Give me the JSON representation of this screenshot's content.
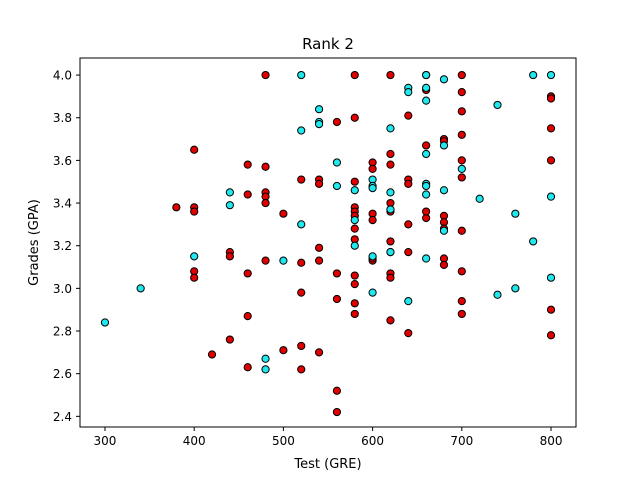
{
  "chart_data": {
    "type": "scatter",
    "title": "Rank 2",
    "xlabel": "Test (GRE)",
    "ylabel": "Grades (GPA)",
    "xlim": [
      272,
      828
    ],
    "ylim": [
      2.35,
      4.08
    ],
    "xticks": [
      300,
      400,
      500,
      600,
      700,
      800
    ],
    "yticks": [
      2.4,
      2.6,
      2.8,
      3.0,
      3.2,
      3.4,
      3.6,
      3.8,
      4.0
    ],
    "xtick_labels": [
      "300",
      "400",
      "500",
      "600",
      "700",
      "800"
    ],
    "ytick_labels": [
      "2.4",
      "2.6",
      "2.8",
      "3.0",
      "3.2",
      "3.4",
      "3.6",
      "3.8",
      "4.0"
    ],
    "grid": false,
    "colors": {
      "red": "#e00000",
      "cyan": "#1fe8ee",
      "edge": "#000000"
    },
    "series": [
      {
        "color": "#e00000",
        "points": [
          [
            480,
            4.0
          ],
          [
            580,
            4.0
          ],
          [
            620,
            4.0
          ],
          [
            660,
            4.0
          ],
          [
            700,
            4.0
          ],
          [
            800,
            3.9
          ],
          [
            800,
            3.89
          ],
          [
            700,
            3.92
          ],
          [
            700,
            3.83
          ],
          [
            800,
            3.75
          ],
          [
            640,
            3.81
          ],
          [
            580,
            3.8
          ],
          [
            560,
            3.78
          ],
          [
            620,
            3.63
          ],
          [
            600,
            3.59
          ],
          [
            680,
            3.7
          ],
          [
            680,
            3.69
          ],
          [
            700,
            3.72
          ],
          [
            660,
            3.67
          ],
          [
            400,
            3.65
          ],
          [
            460,
            3.58
          ],
          [
            480,
            3.57
          ],
          [
            600,
            3.56
          ],
          [
            620,
            3.58
          ],
          [
            700,
            3.52
          ],
          [
            580,
            3.5
          ],
          [
            520,
            3.51
          ],
          [
            540,
            3.51
          ],
          [
            540,
            3.49
          ],
          [
            640,
            3.51
          ],
          [
            640,
            3.49
          ],
          [
            480,
            3.45
          ],
          [
            480,
            3.43
          ],
          [
            460,
            3.44
          ],
          [
            480,
            3.4
          ],
          [
            380,
            3.38
          ],
          [
            400,
            3.38
          ],
          [
            400,
            3.36
          ],
          [
            500,
            3.35
          ],
          [
            580,
            3.38
          ],
          [
            580,
            3.36
          ],
          [
            580,
            3.34
          ],
          [
            600,
            3.35
          ],
          [
            600,
            3.32
          ],
          [
            620,
            3.4
          ],
          [
            620,
            3.36
          ],
          [
            660,
            3.33
          ],
          [
            680,
            3.34
          ],
          [
            680,
            3.31
          ],
          [
            680,
            3.28
          ],
          [
            700,
            3.27
          ],
          [
            700,
            3.6
          ],
          [
            800,
            3.6
          ],
          [
            580,
            3.28
          ],
          [
            580,
            3.23
          ],
          [
            620,
            3.22
          ],
          [
            640,
            3.3
          ],
          [
            540,
            3.19
          ],
          [
            440,
            3.17
          ],
          [
            440,
            3.15
          ],
          [
            600,
            3.13
          ],
          [
            620,
            3.17
          ],
          [
            640,
            3.17
          ],
          [
            660,
            3.36
          ],
          [
            480,
            3.13
          ],
          [
            520,
            3.12
          ],
          [
            540,
            3.13
          ],
          [
            400,
            3.08
          ],
          [
            400,
            3.05
          ],
          [
            460,
            3.07
          ],
          [
            560,
            3.07
          ],
          [
            580,
            3.06
          ],
          [
            620,
            3.07
          ],
          [
            620,
            3.05
          ],
          [
            700,
            3.08
          ],
          [
            580,
            3.02
          ],
          [
            520,
            2.98
          ],
          [
            680,
            3.14
          ],
          [
            680,
            3.11
          ],
          [
            560,
            2.95
          ],
          [
            580,
            2.93
          ],
          [
            700,
            2.94
          ],
          [
            800,
            2.9
          ],
          [
            580,
            2.88
          ],
          [
            620,
            2.85
          ],
          [
            700,
            2.88
          ],
          [
            460,
            2.87
          ],
          [
            640,
            2.79
          ],
          [
            800,
            2.78
          ],
          [
            440,
            2.76
          ],
          [
            520,
            2.73
          ],
          [
            500,
            2.71
          ],
          [
            540,
            2.7
          ],
          [
            420,
            2.69
          ],
          [
            460,
            2.63
          ],
          [
            520,
            2.62
          ],
          [
            560,
            2.52
          ],
          [
            560,
            2.42
          ],
          [
            600,
            3.14
          ],
          [
            660,
            3.93
          ]
        ]
      },
      {
        "color": "#1fe8ee",
        "points": [
          [
            520,
            4.0
          ],
          [
            660,
            4.0
          ],
          [
            680,
            3.98
          ],
          [
            780,
            4.0
          ],
          [
            800,
            4.0
          ],
          [
            640,
            3.94
          ],
          [
            640,
            3.92
          ],
          [
            660,
            3.88
          ],
          [
            740,
            3.86
          ],
          [
            540,
            3.84
          ],
          [
            540,
            3.78
          ],
          [
            540,
            3.77
          ],
          [
            520,
            3.74
          ],
          [
            620,
            3.75
          ],
          [
            680,
            3.67
          ],
          [
            660,
            3.63
          ],
          [
            560,
            3.59
          ],
          [
            600,
            3.51
          ],
          [
            700,
            3.56
          ],
          [
            560,
            3.48
          ],
          [
            580,
            3.46
          ],
          [
            600,
            3.48
          ],
          [
            600,
            3.47
          ],
          [
            620,
            3.45
          ],
          [
            660,
            3.49
          ],
          [
            660,
            3.48
          ],
          [
            680,
            3.46
          ],
          [
            660,
            3.44
          ],
          [
            440,
            3.45
          ],
          [
            440,
            3.39
          ],
          [
            800,
            3.43
          ],
          [
            720,
            3.42
          ],
          [
            760,
            3.35
          ],
          [
            580,
            3.32
          ],
          [
            520,
            3.3
          ],
          [
            680,
            3.27
          ],
          [
            780,
            3.22
          ],
          [
            580,
            3.2
          ],
          [
            620,
            3.17
          ],
          [
            400,
            3.15
          ],
          [
            600,
            3.15
          ],
          [
            500,
            3.13
          ],
          [
            660,
            3.14
          ],
          [
            800,
            3.05
          ],
          [
            340,
            3.0
          ],
          [
            600,
            2.98
          ],
          [
            740,
            2.97
          ],
          [
            760,
            3.0
          ],
          [
            640,
            2.94
          ],
          [
            300,
            2.84
          ],
          [
            480,
            2.67
          ],
          [
            480,
            2.62
          ],
          [
            620,
            3.37
          ],
          [
            660,
            3.94
          ]
        ]
      }
    ]
  }
}
